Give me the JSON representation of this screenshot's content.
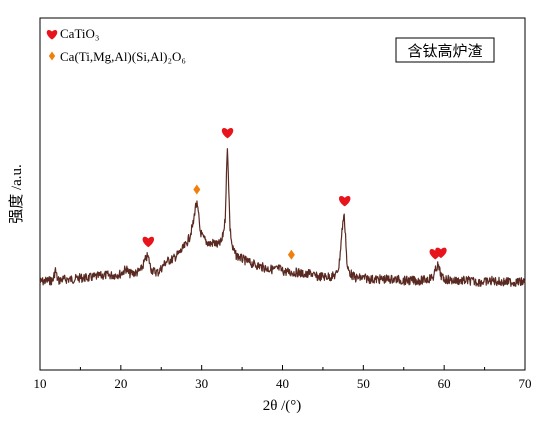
{
  "chart_data": {
    "type": "line",
    "xlabel": "2θ /(°)",
    "ylabel": "强度 /a.u.",
    "xlim": [
      10,
      70
    ],
    "x_ticks": [
      "10",
      "20",
      "30",
      "40",
      "50",
      "60",
      "70"
    ],
    "y_ticks": [],
    "grid": false,
    "annotation_box": "含钛高炉渣",
    "legend": {
      "placement": "top-left",
      "entries": [
        {
          "marker": "heart",
          "color": "#e8141b",
          "label": "CaTiO₃"
        },
        {
          "marker": "diamond",
          "color": "#f07f0e",
          "label": "Ca(Ti,Mg,Al)(Si,Al)₂O₆"
        }
      ]
    },
    "series": [
      {
        "color": "#5a2a22",
        "x": [
          10,
          11,
          11.6,
          11.9,
          12.2,
          13,
          14,
          15,
          16,
          17,
          18,
          19,
          20,
          20.7,
          21,
          22,
          22.5,
          23,
          23.3,
          23.5,
          23.7,
          24,
          24.6,
          25,
          25.6,
          26,
          26.5,
          27,
          27.5,
          28,
          28.5,
          29,
          29.2,
          29.4,
          29.6,
          29.8,
          30.1,
          30.5,
          31,
          31.5,
          32,
          32.5,
          32.9,
          33.1,
          33.2,
          33.3,
          33.5,
          33.8,
          34.2,
          35,
          36,
          37,
          38,
          39,
          39.6,
          40,
          41,
          42,
          43,
          43.5,
          44,
          45,
          46,
          46.6,
          47,
          47.4,
          47.6,
          47.8,
          48,
          48.6,
          49,
          50,
          51,
          52,
          53,
          54,
          55,
          56,
          57,
          58,
          58.7,
          59,
          59.2,
          59.4,
          59.6,
          59.9,
          60.3,
          61,
          62,
          63,
          64,
          65,
          66,
          67,
          68,
          69,
          70
        ],
        "y": [
          0.0,
          0.01,
          0.01,
          0.09,
          0.01,
          0.02,
          0.02,
          0.03,
          0.03,
          0.04,
          0.05,
          0.05,
          0.06,
          0.1,
          0.06,
          0.07,
          0.09,
          0.16,
          0.19,
          0.16,
          0.1,
          0.08,
          0.07,
          0.1,
          0.15,
          0.16,
          0.17,
          0.2,
          0.23,
          0.27,
          0.33,
          0.44,
          0.55,
          0.57,
          0.5,
          0.38,
          0.33,
          0.3,
          0.28,
          0.29,
          0.27,
          0.3,
          0.45,
          0.85,
          1.0,
          0.8,
          0.4,
          0.25,
          0.2,
          0.17,
          0.14,
          0.12,
          0.1,
          0.09,
          0.1,
          0.08,
          0.07,
          0.07,
          0.05,
          0.07,
          0.04,
          0.04,
          0.04,
          0.05,
          0.12,
          0.4,
          0.5,
          0.35,
          0.1,
          0.05,
          0.03,
          0.03,
          0.02,
          0.02,
          0.02,
          0.02,
          0.01,
          0.01,
          0.01,
          0.02,
          0.04,
          0.1,
          0.12,
          0.09,
          0.05,
          0.02,
          0.02,
          0.01,
          0.01,
          0.01,
          0.0,
          0.0,
          0.01,
          0.0,
          0.0,
          0.0,
          0.0
        ]
      }
    ],
    "markers": [
      {
        "symbol": "heart",
        "x": 23.4,
        "y": 0.3
      },
      {
        "symbol": "diamond",
        "x": 29.4,
        "y": 0.68
      },
      {
        "symbol": "heart",
        "x": 33.2,
        "y": 1.1
      },
      {
        "symbol": "diamond",
        "x": 41.1,
        "y": 0.2
      },
      {
        "symbol": "heart",
        "x": 47.7,
        "y": 0.6
      },
      {
        "symbol": "heart",
        "x": 58.9,
        "y": 0.21
      },
      {
        "symbol": "heart",
        "x": 59.6,
        "y": 0.22
      }
    ]
  }
}
